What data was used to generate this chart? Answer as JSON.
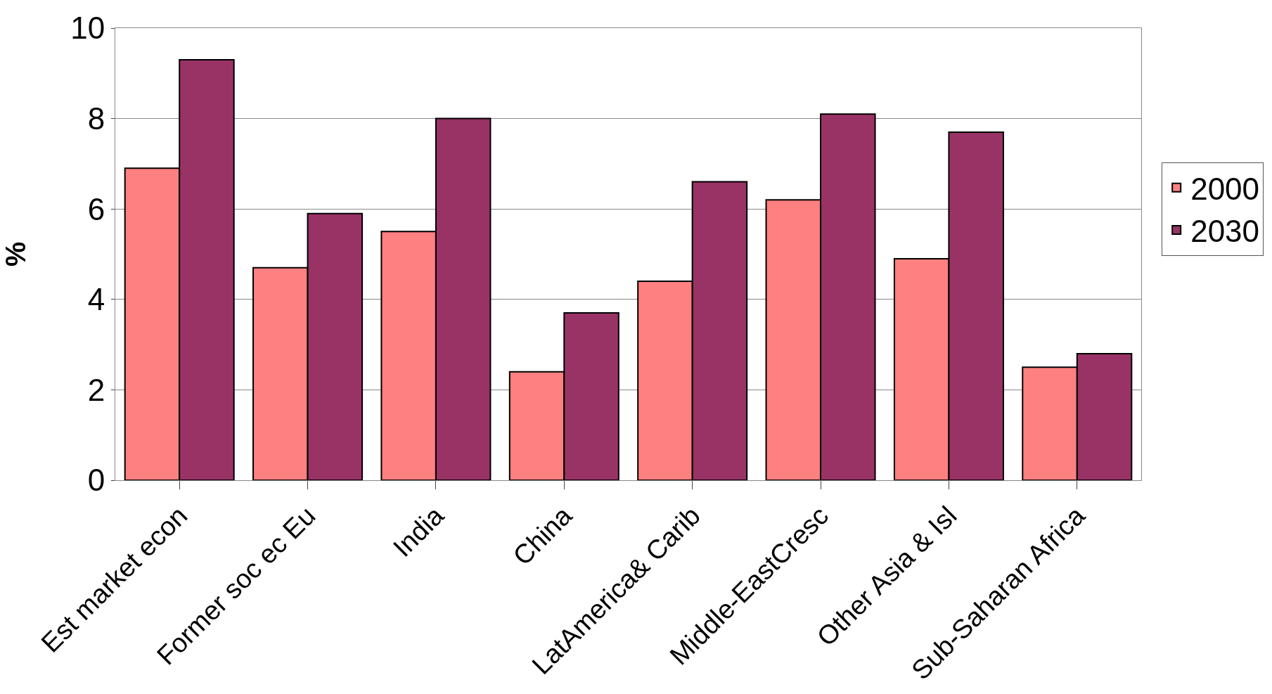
{
  "chart_data": {
    "type": "bar",
    "ylabel": "%",
    "categories": [
      "Est market econ",
      "Former soc ec Eu",
      "India",
      "China",
      "LatAmerica& Carib",
      "Middle-EastCresc",
      "Other Asia & Isl",
      "Sub-Saharan Africa"
    ],
    "series": [
      {
        "name": "2000",
        "color": "#ff8080",
        "values": [
          6.9,
          4.7,
          5.5,
          2.4,
          4.4,
          6.2,
          4.9,
          2.5
        ]
      },
      {
        "name": "2030",
        "color": "#993366",
        "values": [
          9.3,
          5.9,
          8.0,
          3.7,
          6.6,
          8.1,
          7.7,
          2.8
        ]
      }
    ],
    "ylim": [
      0,
      10
    ],
    "yticks": [
      0,
      2,
      4,
      6,
      8,
      10
    ],
    "grid": "y",
    "legend": "right"
  }
}
